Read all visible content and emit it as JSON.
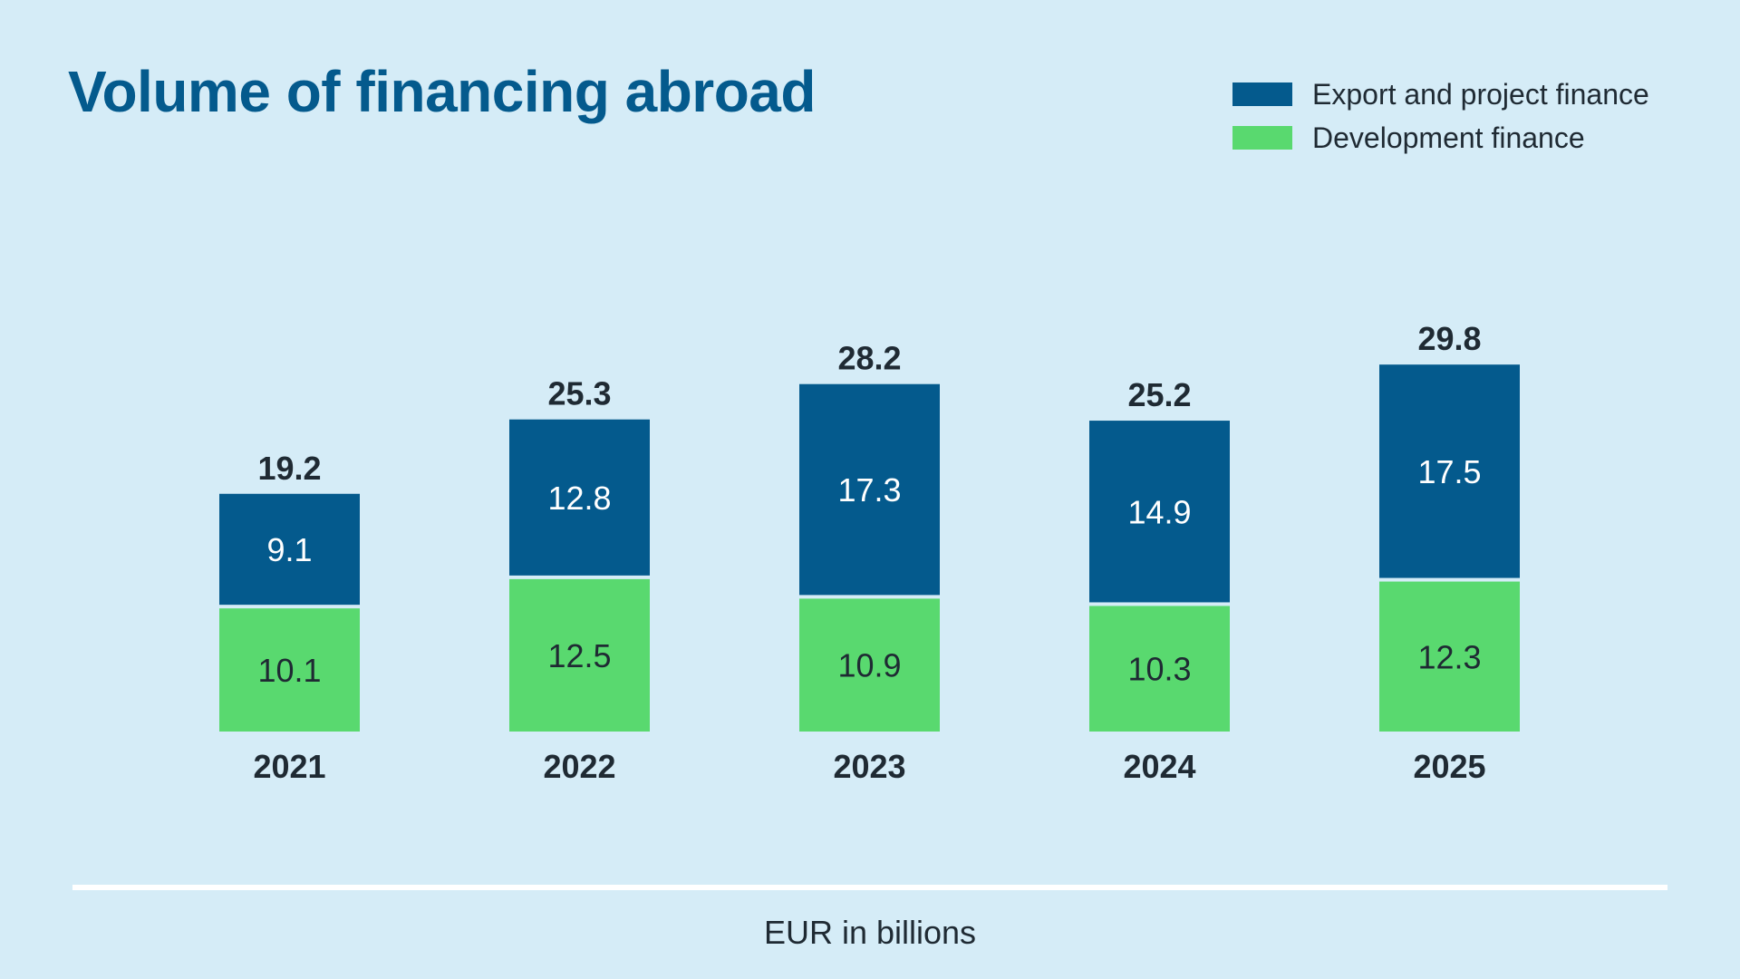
{
  "chart_data": {
    "type": "bar",
    "stacked": true,
    "title": "Volume of financing abroad",
    "categories": [
      "2021",
      "2022",
      "2023",
      "2024",
      "2025"
    ],
    "series": [
      {
        "name": "Development finance",
        "values": [
          10.1,
          12.5,
          10.9,
          10.3,
          12.3
        ],
        "color": "#59d96f"
      },
      {
        "name": "Export and project finance",
        "values": [
          9.1,
          12.8,
          17.3,
          14.9,
          17.5
        ],
        "color": "#045a8d"
      }
    ],
    "totals": [
      "19.2",
      "25.3",
      "28.2",
      "25.2",
      "29.8"
    ],
    "unit_label": "EUR in billions",
    "ylim": [
      0,
      30
    ],
    "grid": false,
    "legend_position": "top-right"
  }
}
